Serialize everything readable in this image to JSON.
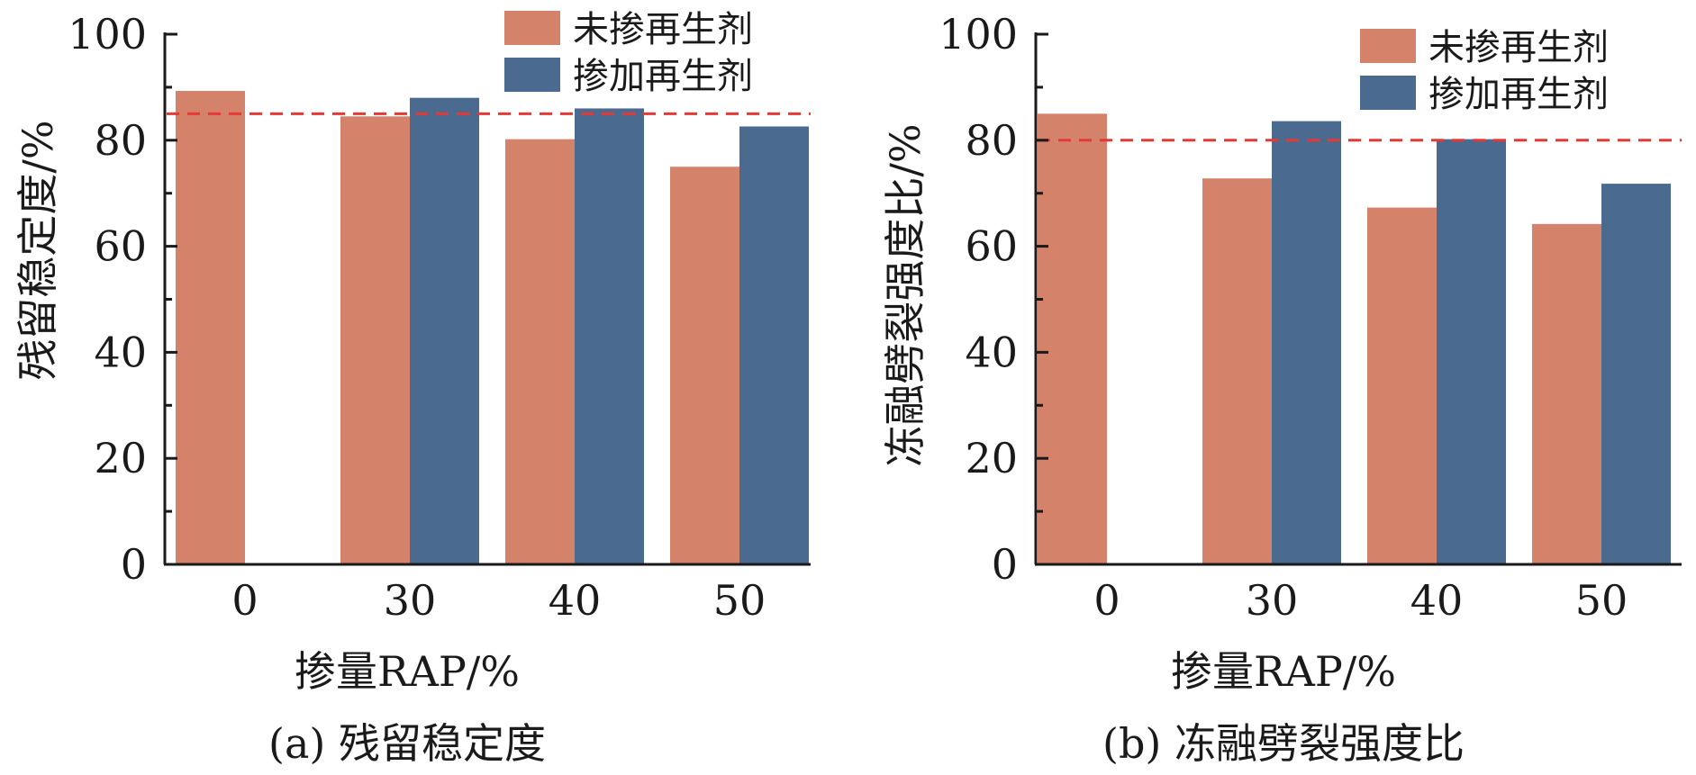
{
  "colors": {
    "no_regen": "#d4826a",
    "with_regen": "#4a6a90",
    "reference_line": "#e53935",
    "axis": "#1a1a1a"
  },
  "chart_data": [
    {
      "type": "bar",
      "caption": "(a) 残留稳定度",
      "xlabel": "掺量RAP/%",
      "ylabel": "残留稳定度/%",
      "categories": [
        "0",
        "30",
        "40",
        "50"
      ],
      "ylim": [
        0,
        100
      ],
      "yticks": [
        "0",
        "20",
        "40",
        "60",
        "80",
        "100"
      ],
      "legend_position": "top-right",
      "series": [
        {
          "name": "未掺再生剂",
          "color_key": "no_regen",
          "values": [
            89.3,
            84.5,
            80.2,
            75.0
          ]
        },
        {
          "name": "掺加再生剂",
          "color_key": "with_regen",
          "values": [
            null,
            88.0,
            86.0,
            82.6
          ]
        }
      ],
      "reference_line": 85
    },
    {
      "type": "bar",
      "caption": "(b) 冻融劈裂强度比",
      "xlabel": "掺量RAP/%",
      "ylabel": "冻融劈裂强度比/%",
      "categories": [
        "0",
        "30",
        "40",
        "50"
      ],
      "ylim": [
        0,
        100
      ],
      "yticks": [
        "0",
        "20",
        "40",
        "60",
        "80",
        "100"
      ],
      "legend_position": "top-right",
      "series": [
        {
          "name": "未掺再生剂",
          "color_key": "no_regen",
          "values": [
            85.0,
            72.8,
            67.3,
            64.2
          ]
        },
        {
          "name": "掺加再生剂",
          "color_key": "with_regen",
          "values": [
            null,
            83.6,
            80.2,
            71.8
          ]
        }
      ],
      "reference_line": 80
    }
  ]
}
